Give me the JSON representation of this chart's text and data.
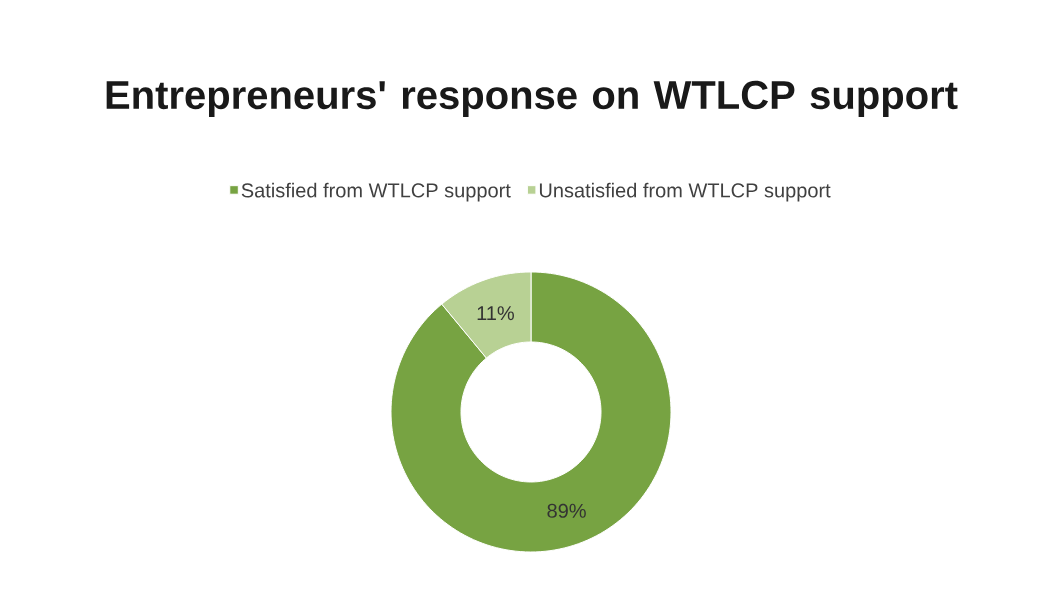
{
  "chart_data": {
    "type": "donut",
    "title": "Entrepreneurs' response on WTLCP support",
    "categories": [
      "Satisfied from WTLCP support",
      "Unsatisfied from WTLCP support"
    ],
    "values": [
      89,
      11
    ],
    "colors": [
      "#77a342",
      "#b8d194"
    ],
    "value_labels": [
      "89%",
      "11%"
    ],
    "legend": "top"
  }
}
